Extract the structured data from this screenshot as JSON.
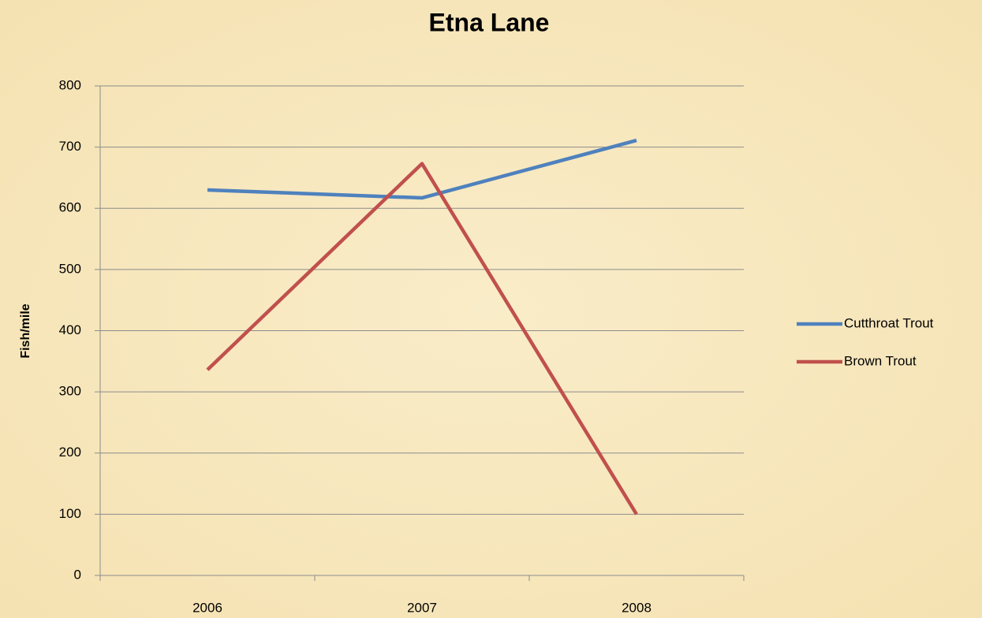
{
  "chart_data": {
    "type": "line",
    "title": "Etna Lane",
    "y_label": "Fish/mile",
    "categories": [
      "2006",
      "2007",
      "2008"
    ],
    "series": [
      {
        "name": "Cutthroat Trout",
        "color": "#4f81bd",
        "values": [
          630,
          617,
          711
        ]
      },
      {
        "name": "Brown Trout",
        "color": "#c0504d",
        "values": [
          336,
          673,
          100
        ]
      }
    ],
    "ylim": [
      0,
      800
    ],
    "yticks": [
      0,
      100,
      200,
      300,
      400,
      500,
      600,
      700,
      800
    ],
    "grid": true,
    "legend": "right"
  }
}
